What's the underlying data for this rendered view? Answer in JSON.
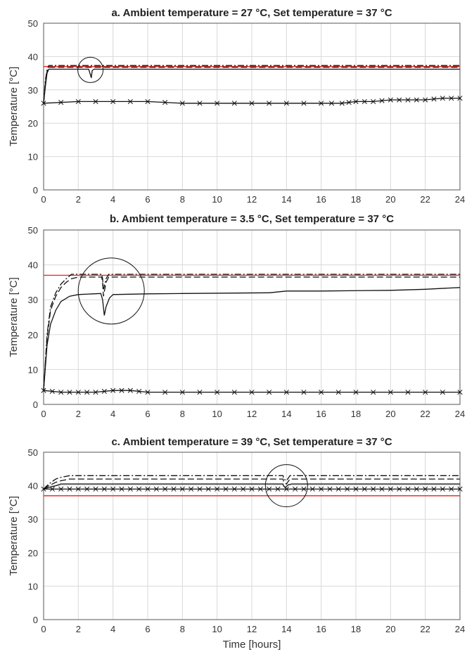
{
  "colors": {
    "set_line": "#e8302a",
    "series": "#111111",
    "grid": "#d9d9d9"
  },
  "chart_data": [
    {
      "type": "line",
      "title": "a. Ambient temperature = 27 °C, Set temperature = 37 °C",
      "xlabel": "",
      "ylabel": "Temperature [°C]",
      "xlim": [
        0,
        24
      ],
      "ylim": [
        0,
        50
      ],
      "xticks": [
        "0",
        "2",
        "4",
        "6",
        "8",
        "10",
        "12",
        "14",
        "16",
        "18",
        "20",
        "22",
        "24"
      ],
      "yticks": [
        "0",
        "10",
        "20",
        "30",
        "40",
        "50"
      ],
      "grid": true,
      "set_temperature": 37,
      "series": [
        {
          "style": "dashdot",
          "x": [
            0,
            0.1,
            0.2,
            0.3,
            24
          ],
          "y": [
            26,
            33,
            36,
            37.3,
            37.3
          ]
        },
        {
          "style": "dashed",
          "x": [
            0,
            0.1,
            0.2,
            0.3,
            24
          ],
          "y": [
            26,
            32,
            35.5,
            36.8,
            36.8
          ]
        },
        {
          "style": "solid",
          "x": [
            0,
            0.1,
            0.2,
            0.3,
            2.6,
            2.7,
            2.75,
            2.8,
            2.9,
            24
          ],
          "y": [
            26,
            31,
            35,
            36.2,
            36.2,
            34.5,
            33.6,
            35.8,
            36.2,
            36.2
          ]
        },
        {
          "style": "x-marker",
          "x": [
            0,
            2,
            4,
            6,
            8,
            10,
            12,
            14,
            16,
            17.2,
            18,
            19,
            20,
            21,
            22,
            23,
            24
          ],
          "y": [
            26,
            26.5,
            26.5,
            26.5,
            26,
            26,
            26,
            26,
            26,
            26,
            26.5,
            26.5,
            27,
            27,
            27,
            27.5,
            27.5
          ]
        }
      ],
      "annotations": [
        {
          "shape": "circle",
          "x": 2.7,
          "y": 36
        }
      ]
    },
    {
      "type": "line",
      "title": "b. Ambient temperature = 3.5 °C, Set temperature = 37 °C",
      "xlabel": "",
      "ylabel": "Temperature [°C]",
      "xlim": [
        0,
        24
      ],
      "ylim": [
        0,
        50
      ],
      "xticks": [
        "0",
        "2",
        "4",
        "6",
        "8",
        "10",
        "12",
        "14",
        "16",
        "18",
        "20",
        "22",
        "24"
      ],
      "yticks": [
        "0",
        "10",
        "20",
        "30",
        "40",
        "50"
      ],
      "grid": true,
      "set_temperature": 37,
      "series": [
        {
          "style": "dashdot",
          "x": [
            0,
            0.2,
            0.4,
            0.7,
            1.0,
            1.3,
            1.6,
            3.35,
            3.4,
            3.45,
            3.6,
            3.75,
            3.8,
            24
          ],
          "y": [
            4,
            20,
            28,
            32,
            34.5,
            36,
            37.3,
            37.3,
            36,
            33,
            36,
            37.3,
            37.3,
            37.3
          ]
        },
        {
          "style": "dashed",
          "x": [
            0,
            0.2,
            0.4,
            0.7,
            1.0,
            1.3,
            1.6,
            2.0,
            3.35,
            3.4,
            3.45,
            3.6,
            3.75,
            3.8,
            24
          ],
          "y": [
            4,
            19,
            27,
            31,
            33.5,
            35,
            36,
            36.5,
            36.5,
            35,
            31,
            35,
            36.5,
            36.5,
            36.5
          ]
        },
        {
          "style": "solid",
          "x": [
            0,
            0.2,
            0.4,
            0.7,
            1.0,
            1.5,
            2.0,
            3.3,
            3.4,
            3.5,
            3.6,
            3.8,
            4.0,
            6.0,
            8,
            13,
            14,
            16,
            20,
            22,
            24
          ],
          "y": [
            4,
            17,
            23,
            27,
            29.5,
            31,
            31.5,
            31.8,
            30,
            25.5,
            28,
            30.5,
            31.5,
            31.7,
            31.8,
            32,
            32.5,
            32.5,
            32.7,
            33,
            33.5
          ]
        },
        {
          "style": "x-marker",
          "x": [
            0,
            1,
            2,
            3,
            4,
            5,
            6,
            8,
            10,
            12,
            14,
            16,
            18,
            20,
            22,
            24
          ],
          "y": [
            4,
            3.5,
            3.5,
            3.5,
            4,
            4,
            3.5,
            3.5,
            3.5,
            3.5,
            3.5,
            3.5,
            3.5,
            3.5,
            3.5,
            3.5
          ]
        }
      ],
      "annotations": [
        {
          "shape": "circle",
          "x": 3.9,
          "y": 32.5
        }
      ]
    },
    {
      "type": "line",
      "title": "c. Ambient temperature = 39 °C, Set temperature = 37 °C",
      "xlabel": "Time [hours]",
      "ylabel": "Temperature [°C]",
      "xlim": [
        0,
        24
      ],
      "ylim": [
        0,
        50
      ],
      "xticks": [
        "0",
        "2",
        "4",
        "6",
        "8",
        "10",
        "12",
        "14",
        "16",
        "18",
        "20",
        "22",
        "24"
      ],
      "yticks": [
        "0",
        "10",
        "20",
        "30",
        "40",
        "50"
      ],
      "grid": true,
      "set_temperature": 37,
      "series": [
        {
          "style": "dashdot",
          "x": [
            0,
            0.3,
            0.7,
            1.0,
            1.5,
            13.8,
            13.85,
            14.0,
            14.2,
            24
          ],
          "y": [
            39,
            40.5,
            42,
            42.5,
            43,
            43,
            42,
            41.5,
            43,
            43
          ]
        },
        {
          "style": "dashed",
          "x": [
            0,
            0.3,
            0.7,
            1.0,
            1.5,
            13.8,
            13.85,
            14.0,
            14.2,
            24
          ],
          "y": [
            39,
            40,
            41,
            41.5,
            42,
            42,
            41,
            40.5,
            42,
            42
          ]
        },
        {
          "style": "solid",
          "x": [
            0,
            0.3,
            0.7,
            1.0,
            13.8,
            13.85,
            13.95,
            14.1,
            14.3,
            24
          ],
          "y": [
            39,
            39.5,
            40,
            40.5,
            40.5,
            39.8,
            39.5,
            40.3,
            40.5,
            40.5
          ]
        },
        {
          "style": "x-marker",
          "x": [
            0,
            0.5,
            1,
            1.5,
            2,
            2.5,
            3,
            3.5,
            4,
            4.5,
            5,
            5.5,
            6,
            6.5,
            7,
            7.5,
            8,
            8.5,
            9,
            9.5,
            10,
            10.5,
            11,
            11.5,
            12,
            12.5,
            13,
            13.5,
            14,
            14.5,
            15,
            15.5,
            16,
            16.5,
            17,
            17.5,
            18,
            18.5,
            19,
            19.5,
            20,
            20.5,
            21,
            21.5,
            22,
            22.5,
            23,
            23.5,
            24
          ],
          "y": [
            39,
            39,
            39,
            39,
            39,
            39,
            39,
            39,
            39,
            39,
            39,
            39,
            39,
            39,
            39,
            39,
            39,
            39,
            39,
            39,
            39,
            39,
            39,
            39,
            39,
            39,
            39,
            39,
            39,
            39,
            39,
            39,
            39,
            39,
            39,
            39,
            39,
            39,
            39,
            39,
            39,
            39,
            39,
            39,
            39,
            39,
            39,
            39,
            39
          ]
        }
      ],
      "annotations": [
        {
          "shape": "circle",
          "x": 14,
          "y": 40
        }
      ]
    }
  ]
}
